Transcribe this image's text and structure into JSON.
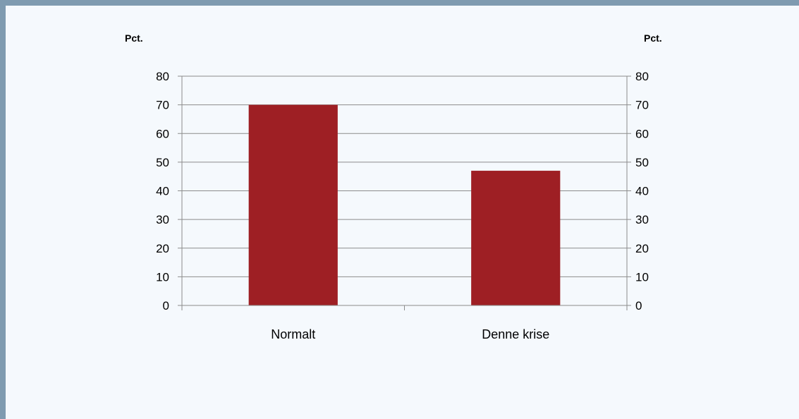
{
  "header": {
    "title": ""
  },
  "chart_data": {
    "type": "bar",
    "categories": [
      "Normalt",
      "Denne krise"
    ],
    "values": [
      70,
      47
    ],
    "title": "",
    "ylabel_left": "Pct.",
    "ylabel_right": "Pct.",
    "ylim": [
      0,
      80
    ],
    "yticks": [
      0,
      10,
      20,
      30,
      40,
      50,
      60,
      70,
      80
    ],
    "grid": true,
    "legend": "none",
    "bar_color": "#9e1f24"
  }
}
